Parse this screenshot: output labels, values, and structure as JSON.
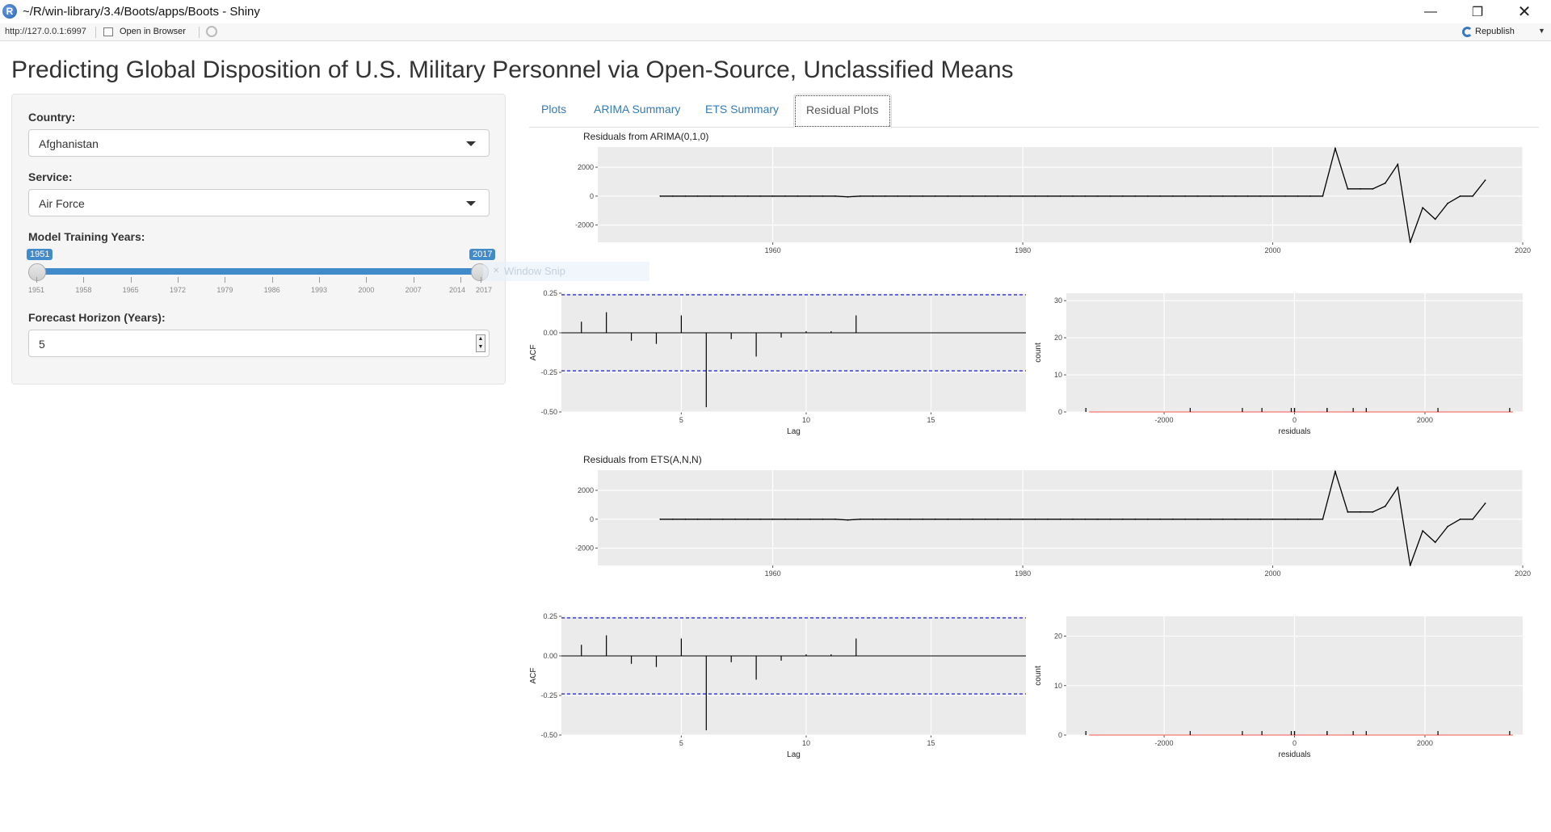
{
  "window": {
    "title": "~/R/win-library/3.4/Boots/apps/Boots - Shiny",
    "app_icon": "R",
    "controls": [
      "minimize-icon",
      "restore-icon",
      "close-icon"
    ]
  },
  "toolbar": {
    "url": "http://127.0.0.1:6997",
    "open_label": "Open in Browser",
    "republish_label": "Republish"
  },
  "page": {
    "title": "Predicting Global Disposition of U.S. Military Personnel via Open-Source, Unclassified Means"
  },
  "sidebar": {
    "country_label": "Country:",
    "country_value": "Afghanistan",
    "service_label": "Service:",
    "service_value": "Air Force",
    "years_label": "Model Training Years:",
    "years_min_value": "1951",
    "years_max_value": "2017",
    "year_ticks": [
      "1951",
      "1958",
      "1965",
      "1972",
      "1979",
      "1986",
      "1993",
      "2000",
      "2007",
      "2014",
      "2017"
    ],
    "horizon_label": "Forecast Horizon (Years):",
    "horizon_value": "5",
    "snip_overlay": "Window Snip"
  },
  "tabs": [
    {
      "label": "Plots",
      "active": false
    },
    {
      "label": "ARIMA Summary",
      "active": false
    },
    {
      "label": "ETS Summary",
      "active": false
    },
    {
      "label": "Residual Plots",
      "active": true
    }
  ],
  "colors": {
    "accent": "#428bca",
    "link": "#337ab7",
    "panel_bg": "#ebebeb",
    "conf_line": "#0000cc",
    "hist_line": "#f8766d"
  },
  "chart_data": [
    {
      "type": "line",
      "title": "Residuals from ARIMA(0,1,0)",
      "xlabel": "",
      "ylabel": "",
      "xlim": [
        1946,
        2020
      ],
      "ylim": [
        -3200,
        3400
      ],
      "x_ticks": [
        "1960",
        "1980",
        "2000",
        "2020"
      ],
      "y_ticks": [
        "2000",
        "0",
        "-2000"
      ],
      "x": [
        1951,
        1952,
        1953,
        1954,
        1955,
        1956,
        1957,
        1958,
        1959,
        1960,
        1961,
        1962,
        1963,
        1964,
        1965,
        1966,
        1967,
        1968,
        1969,
        1970,
        1971,
        1972,
        1973,
        1974,
        1975,
        1976,
        1977,
        1978,
        1979,
        1980,
        1981,
        1982,
        1983,
        1984,
        1985,
        1986,
        1987,
        1988,
        1989,
        1990,
        1991,
        1992,
        1993,
        1994,
        1995,
        1996,
        1997,
        1998,
        1999,
        2000,
        2001,
        2002,
        2003,
        2004,
        2005,
        2006,
        2007,
        2008,
        2009,
        2010,
        2011,
        2012,
        2013,
        2014,
        2015,
        2016,
        2017
      ],
      "y": [
        0,
        0,
        0,
        0,
        0,
        0,
        0,
        0,
        0,
        0,
        0,
        0,
        0,
        0,
        0,
        -50,
        0,
        0,
        0,
        0,
        0,
        0,
        0,
        0,
        0,
        0,
        0,
        0,
        0,
        0,
        0,
        0,
        0,
        0,
        0,
        0,
        0,
        0,
        0,
        0,
        0,
        0,
        0,
        0,
        0,
        0,
        0,
        0,
        0,
        0,
        0,
        0,
        0,
        0,
        3300,
        500,
        500,
        500,
        900,
        2200,
        -3200,
        -800,
        -1600,
        -500,
        0,
        0,
        1100
      ]
    },
    {
      "type": "bar",
      "xlabel": "Lag",
      "ylabel": "ACF",
      "xlim": [
        0.2,
        18.8
      ],
      "ylim": [
        -0.5,
        0.25
      ],
      "x_ticks": [
        "5",
        "10",
        "15"
      ],
      "y_ticks": [
        "0.25",
        "0.00",
        "-0.25",
        "-0.50"
      ],
      "conf_limit": 0.24,
      "lags": [
        1,
        2,
        3,
        4,
        5,
        6,
        7,
        8,
        9,
        10,
        11,
        12
      ],
      "values": [
        0.07,
        0.13,
        -0.05,
        -0.07,
        0.11,
        -0.47,
        -0.04,
        -0.15,
        -0.03,
        0.01,
        0.01,
        0.11
      ]
    },
    {
      "type": "histogram",
      "xlabel": "residuals",
      "ylabel": "count",
      "xlim": [
        -3500,
        3500
      ],
      "ylim": [
        0,
        32
      ],
      "x_ticks": [
        "-2000",
        "0",
        "2000"
      ],
      "y_ticks": [
        "30",
        "20",
        "10",
        "0"
      ],
      "rug": [
        -3200,
        -1600,
        -800,
        -500,
        -50,
        0,
        0,
        500,
        500,
        900,
        1100,
        2200,
        3300
      ]
    },
    {
      "type": "line",
      "title": "Residuals from ETS(A,N,N)",
      "xlabel": "",
      "ylabel": "",
      "xlim": [
        1946,
        2020
      ],
      "ylim": [
        -3200,
        3400
      ],
      "x_ticks": [
        "1960",
        "1980",
        "2000",
        "2020"
      ],
      "y_ticks": [
        "2000",
        "0",
        "-2000"
      ],
      "x": [
        1951,
        1952,
        1953,
        1954,
        1955,
        1956,
        1957,
        1958,
        1959,
        1960,
        1961,
        1962,
        1963,
        1964,
        1965,
        1966,
        1967,
        1968,
        1969,
        1970,
        1971,
        1972,
        1973,
        1974,
        1975,
        1976,
        1977,
        1978,
        1979,
        1980,
        1981,
        1982,
        1983,
        1984,
        1985,
        1986,
        1987,
        1988,
        1989,
        1990,
        1991,
        1992,
        1993,
        1994,
        1995,
        1996,
        1997,
        1998,
        1999,
        2000,
        2001,
        2002,
        2003,
        2004,
        2005,
        2006,
        2007,
        2008,
        2009,
        2010,
        2011,
        2012,
        2013,
        2014,
        2015,
        2016,
        2017
      ],
      "y": [
        0,
        0,
        0,
        0,
        0,
        0,
        0,
        0,
        0,
        0,
        0,
        0,
        0,
        0,
        0,
        -50,
        0,
        0,
        0,
        0,
        0,
        0,
        0,
        0,
        0,
        0,
        0,
        0,
        0,
        0,
        0,
        0,
        0,
        0,
        0,
        0,
        0,
        0,
        0,
        0,
        0,
        0,
        0,
        0,
        0,
        0,
        0,
        0,
        0,
        0,
        0,
        0,
        0,
        0,
        3300,
        500,
        500,
        500,
        900,
        2200,
        -3200,
        -800,
        -1600,
        -500,
        0,
        0,
        1100
      ]
    },
    {
      "type": "bar",
      "xlabel": "Lag",
      "ylabel": "ACF",
      "xlim": [
        0.2,
        18.8
      ],
      "ylim": [
        -0.5,
        0.25
      ],
      "x_ticks": [
        "5",
        "10",
        "15"
      ],
      "y_ticks": [
        "0.25",
        "0.00",
        "-0.25",
        "-0.50"
      ],
      "conf_limit": 0.24,
      "lags": [
        1,
        2,
        3,
        4,
        5,
        6,
        7,
        8,
        9,
        10,
        11,
        12
      ],
      "values": [
        0.07,
        0.13,
        -0.05,
        -0.07,
        0.11,
        -0.47,
        -0.04,
        -0.15,
        -0.03,
        0.01,
        0.01,
        0.11
      ]
    },
    {
      "type": "histogram",
      "xlabel": "residuals",
      "ylabel": "count",
      "xlim": [
        -3500,
        3500
      ],
      "ylim": [
        0,
        24
      ],
      "x_ticks": [
        "-2000",
        "0",
        "2000"
      ],
      "y_ticks": [
        "20",
        "10",
        "0"
      ],
      "rug": [
        -3200,
        -1600,
        -800,
        -500,
        -50,
        0,
        0,
        500,
        500,
        900,
        1100,
        2200,
        3300
      ]
    }
  ]
}
